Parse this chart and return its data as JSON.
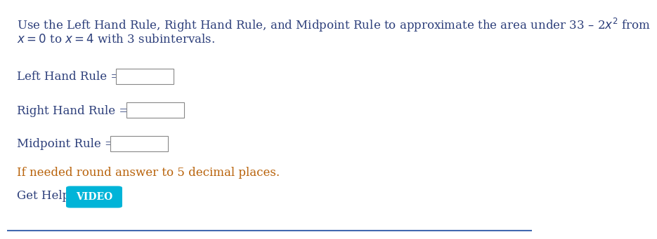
{
  "bg_color": "#ffffff",
  "border_bottom_color": "#4169b0",
  "text_color_blue": "#2c3e7a",
  "text_color_orange": "#b8620a",
  "btn_color": "#00b4d8",
  "btn_text_color": "#ffffff",
  "box_edge_color": "#888888",
  "line1": "Use the Left Hand Rule, Right Hand Rule, and Midpoint Rule to approximate the area under 33 – 2$x^2$ from",
  "line2": "$x = 0$ to $x = 4$ with 3 subintervals.",
  "label_lhr": "Left Hand Rule =",
  "label_rhr": "Right Hand Rule =",
  "label_mid": "Midpoint Rule =",
  "note": "If needed round answer to 5 decimal places.",
  "help_label": "Get Help:",
  "btn_label": "VIDEO",
  "font_size": 12,
  "font_size_small": 11
}
